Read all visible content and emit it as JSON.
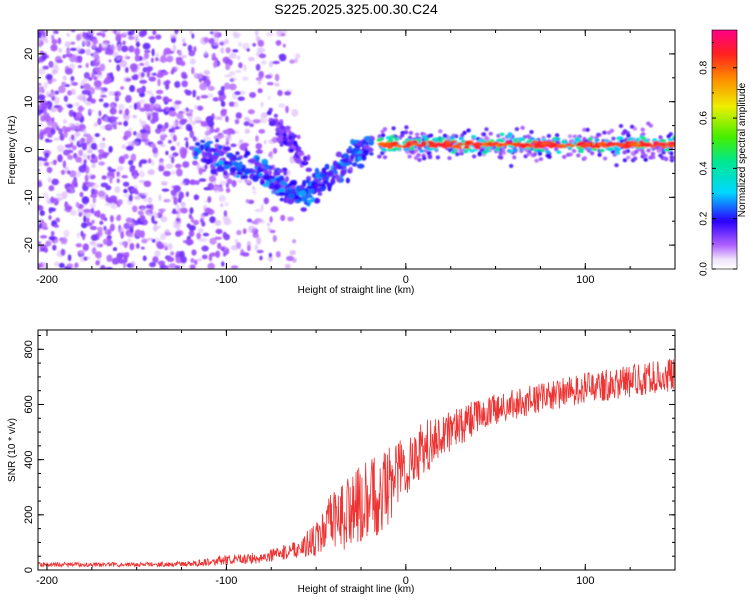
{
  "chart_data": [
    {
      "type": "heatmap",
      "title": "S225.2025.325.00.30.C24",
      "xlabel": "Height of straight line (km)",
      "ylabel": "Frequency (Hz)",
      "xlim": [
        -205,
        150
      ],
      "ylim": [
        -25,
        25
      ],
      "xticks": [
        -200,
        -100,
        0,
        100
      ],
      "yticks": [
        -20,
        -10,
        0,
        10,
        20
      ],
      "colorbar": {
        "label": "Normalized spectral amplitude",
        "range": [
          0,
          0.95
        ],
        "ticks": [
          0.0,
          0.2,
          0.4,
          0.6,
          0.8
        ],
        "tick_labels": [
          "0.0",
          "0.2",
          "0.4",
          "0.6",
          "0.8"
        ]
      },
      "features": [
        {
          "name": "noise",
          "x_range": [
            -205,
            -60
          ],
          "y_range": [
            -25,
            25
          ],
          "level": "low"
        },
        {
          "name": "descending_signal",
          "x": [
            -118,
            -100,
            -80,
            -65,
            -55,
            -45,
            -30,
            -20
          ],
          "y": [
            0,
            -2,
            -5,
            -9,
            -9,
            -6,
            -2,
            1
          ],
          "level": "medium"
        },
        {
          "name": "side_branch",
          "x": [
            -75,
            -65,
            -55
          ],
          "y": [
            7,
            2,
            -3
          ],
          "level": "low"
        },
        {
          "name": "steady_carrier",
          "x": [
            -15,
            0,
            50,
            100,
            150
          ],
          "y": [
            1,
            1,
            1,
            1,
            1.5
          ],
          "level": "high"
        }
      ]
    },
    {
      "type": "line",
      "xlabel": "Height of straight line (km)",
      "ylabel": "SNR (10 * v/v)",
      "xlim": [
        -205,
        150
      ],
      "ylim": [
        0,
        870
      ],
      "xticks": [
        -200,
        -100,
        0,
        100
      ],
      "yticks": [
        0,
        200,
        400,
        600,
        800
      ],
      "color": "#ee3333",
      "series": [
        {
          "name": "SNR",
          "x": [
            -205,
            -180,
            -150,
            -120,
            -110,
            -100,
            -90,
            -80,
            -70,
            -60,
            -50,
            -40,
            -30,
            -20,
            -10,
            0,
            10,
            20,
            30,
            40,
            60,
            80,
            100,
            120,
            140,
            150
          ],
          "mean": [
            20,
            20,
            20,
            22,
            30,
            35,
            40,
            45,
            60,
            80,
            110,
            180,
            220,
            250,
            310,
            380,
            440,
            490,
            520,
            560,
            600,
            630,
            660,
            680,
            700,
            710
          ],
          "spread": [
            8,
            8,
            8,
            10,
            15,
            18,
            20,
            20,
            25,
            35,
            60,
            120,
            140,
            150,
            150,
            120,
            100,
            80,
            70,
            60,
            55,
            55,
            55,
            60,
            60,
            60
          ]
        }
      ]
    }
  ]
}
